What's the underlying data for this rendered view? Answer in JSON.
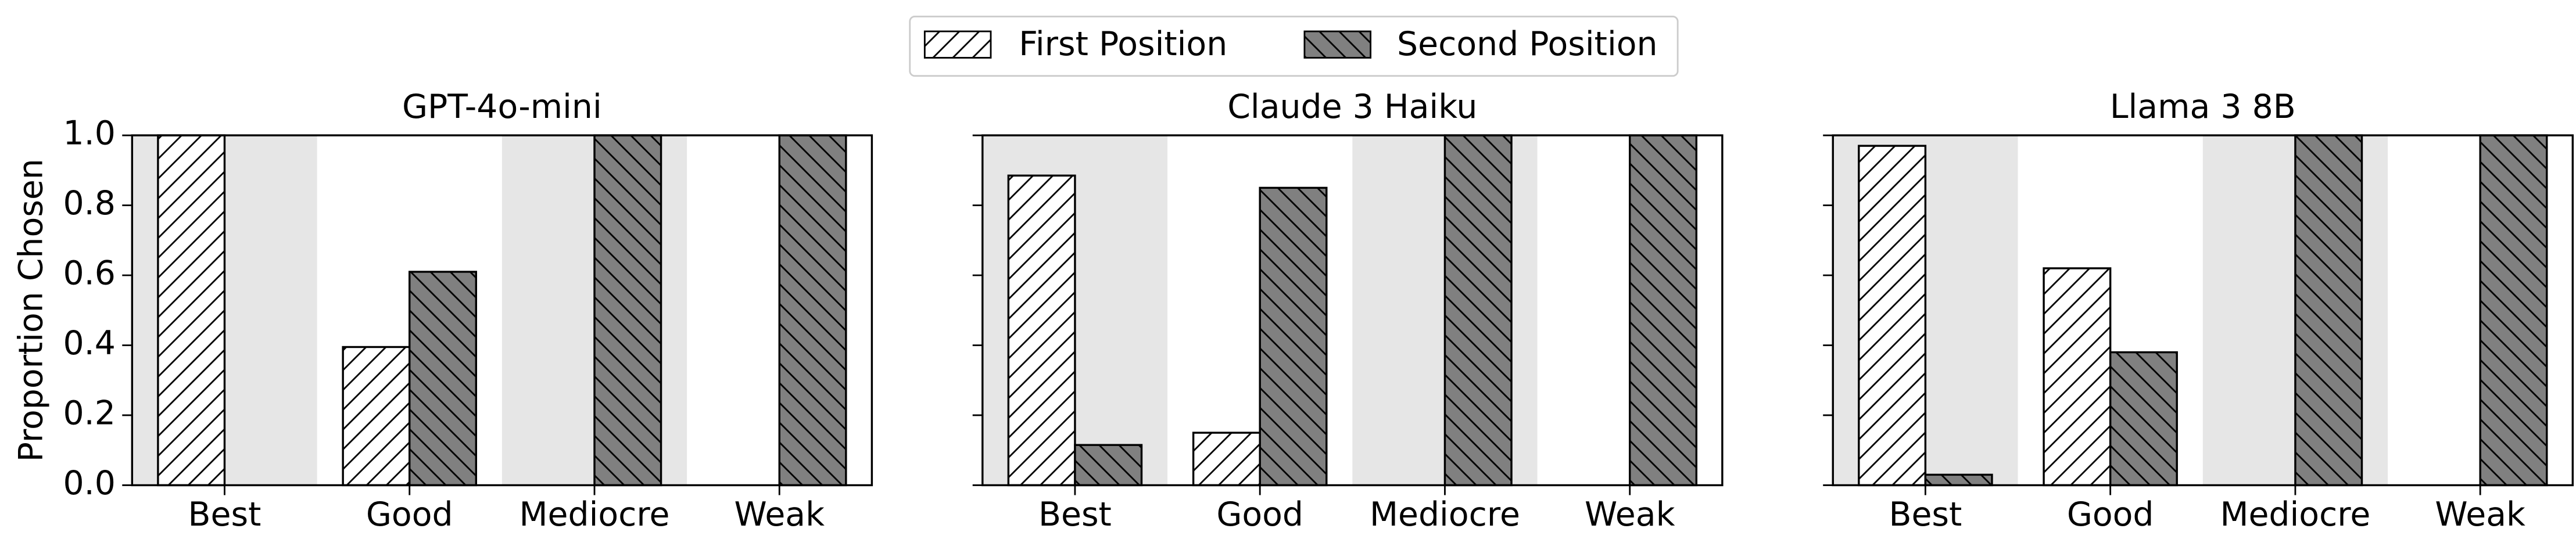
{
  "chart_data": [
    {
      "type": "bar",
      "title": "GPT-4o-mini",
      "ylabel": "Proportion Chosen",
      "categories": [
        "Best",
        "Good",
        "Mediocre",
        "Weak"
      ],
      "series": [
        {
          "name": "First Position",
          "color": "#ffffff",
          "hatch": "/",
          "values": [
            1.0,
            0.395,
            0,
            0
          ]
        },
        {
          "name": "Second Position",
          "color": "#808080",
          "hatch": "\\",
          "values": [
            0,
            0.61,
            1.0,
            1.0
          ]
        }
      ],
      "ylim": [
        0,
        1
      ],
      "yticks": [
        {
          "value": 0,
          "label": "0.0"
        },
        0.2,
        0.4,
        0.6,
        0.8,
        {
          "value": 1,
          "label": "1.0"
        }
      ]
    },
    {
      "type": "bar",
      "title": "Claude 3 Haiku",
      "categories": [
        "Best",
        "Good",
        "Mediocre",
        "Weak"
      ],
      "series": [
        {
          "color": "#ffffff",
          "hatch": "/",
          "values": [
            0.885,
            0.15,
            0,
            0
          ]
        },
        {
          "color": "#808080",
          "hatch": "\\",
          "values": [
            0.115,
            0.85,
            1.0,
            1.0
          ]
        }
      ],
      "ylim": [
        0,
        1
      ],
      "yticks": [
        0,
        0.2,
        0.4,
        0.6,
        0.8,
        1
      ]
    },
    {
      "type": "bar",
      "title": "Llama 3 8B",
      "categories": [
        "Best",
        "Good",
        "Mediocre",
        "Weak"
      ],
      "series": [
        {
          "color": "#ffffff",
          "hatch": "/",
          "values": [
            0.97,
            0.62,
            0,
            0
          ]
        },
        {
          "color": "#808080",
          "hatch": "\\",
          "values": [
            0.03,
            0.38,
            1.0,
            1.0
          ]
        }
      ],
      "ylim": [
        0,
        1
      ],
      "yticks": [
        0,
        0.2,
        0.4,
        0.6,
        0.8,
        1
      ]
    }
  ]
}
